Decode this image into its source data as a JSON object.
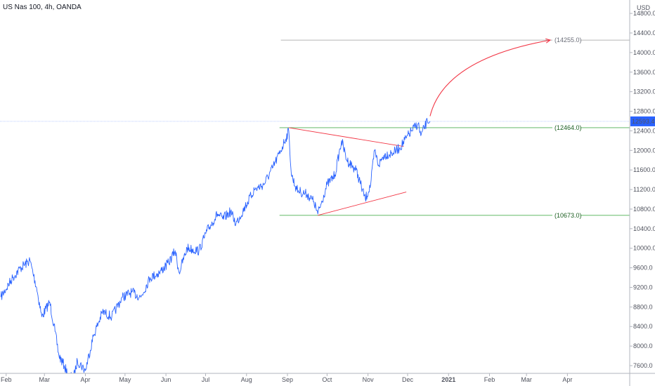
{
  "header": {
    "title": "US Nas 100, 4h, OANDA"
  },
  "colors": {
    "price_line": "#2962ff",
    "trendline": "#f23645",
    "arrow": "#f23645",
    "support_line": "#4caf50",
    "target_line": "#9e9e9e",
    "current_price_line": "#2962ff",
    "current_price_bg": "#2962ff",
    "axis_border": "#b2b5be",
    "axis_text": "#50535e",
    "level_label_support": "#1b5e20",
    "level_label_target": "#6a6d78"
  },
  "chart_data": {
    "type": "line",
    "title": "US Nas 100, 4h, OANDA",
    "currency": "USD",
    "x_tick_labels": [
      "Feb",
      "Mar",
      "Apr",
      "May",
      "Jun",
      "Jul",
      "Aug",
      "Sep",
      "Oct",
      "Nov",
      "Dec",
      "2021",
      "Feb",
      "Mar",
      "Apr"
    ],
    "y_ticks": [
      7600,
      8000,
      8400,
      8800,
      9200,
      9600,
      10000,
      10400,
      10800,
      11200,
      11600,
      12000,
      12400,
      12800,
      13200,
      13600,
      14000,
      14400,
      14800
    ],
    "y_tick_labels": [
      "7600.0",
      "8000.0",
      "8400.0",
      "8800.0",
      "9200.0",
      "9600.0",
      "10000.0",
      "10400.0",
      "10800.0",
      "11200.0",
      "11600.0",
      "12000.0",
      "12400.0",
      "12800.0",
      "13200.0",
      "13600.0",
      "14000.0",
      "14400.0",
      "14800.0"
    ],
    "ylim": [
      7400,
      15000
    ],
    "series": [
      {
        "x": [
          "2020-01-28",
          "2020-02-06",
          "2020-02-12",
          "2020-02-19",
          "2020-02-24",
          "2020-02-28",
          "2020-03-05",
          "2020-03-09",
          "2020-03-12",
          "2020-03-16",
          "2020-03-19",
          "2020-03-23",
          "2020-03-26",
          "2020-04-01",
          "2020-04-07",
          "2020-04-14",
          "2020-04-21",
          "2020-04-29",
          "2020-05-06",
          "2020-05-13",
          "2020-05-20",
          "2020-05-27",
          "2020-06-03",
          "2020-06-08",
          "2020-06-11",
          "2020-06-17",
          "2020-06-26",
          "2020-07-02",
          "2020-07-10",
          "2020-07-14",
          "2020-07-20",
          "2020-07-24",
          "2020-07-31",
          "2020-08-07",
          "2020-08-14",
          "2020-08-21",
          "2020-08-27",
          "2020-09-02",
          "2020-09-04",
          "2020-09-08",
          "2020-09-11",
          "2020-09-16",
          "2020-09-21",
          "2020-09-24",
          "2020-10-01",
          "2020-10-07",
          "2020-10-12",
          "2020-10-16",
          "2020-10-23",
          "2020-10-30",
          "2020-11-03",
          "2020-11-06",
          "2020-11-09",
          "2020-11-13",
          "2020-11-20",
          "2020-11-25",
          "2020-11-30",
          "2020-12-04",
          "2020-12-09",
          "2020-12-11",
          "2020-12-16",
          "2020-12-18"
        ],
        "values": [
          9000,
          9400,
          9600,
          9750,
          9200,
          8600,
          8900,
          8300,
          7800,
          7600,
          7400,
          7350,
          7700,
          7500,
          8200,
          8700,
          8600,
          9000,
          9100,
          9000,
          9400,
          9500,
          9700,
          9950,
          9500,
          10000,
          9950,
          10350,
          10700,
          10600,
          10750,
          10500,
          10850,
          11200,
          11300,
          11650,
          12000,
          12400,
          11500,
          11200,
          11150,
          11100,
          10950,
          10700,
          11300,
          11500,
          12200,
          11800,
          11600,
          11000,
          11300,
          12000,
          11700,
          11900,
          11950,
          12050,
          12250,
          12400,
          12550,
          12300,
          12600,
          12593
        ]
      }
    ],
    "horizontal_levels": [
      {
        "value": 14255,
        "label": "(14255.0)",
        "from": "2020-08-27",
        "role": "target"
      },
      {
        "value": 12464,
        "label": "(12464.0)",
        "from": "2020-08-26",
        "role": "support"
      },
      {
        "value": 10673,
        "label": "(10673.0)",
        "from": "2020-08-26",
        "role": "support"
      }
    ],
    "trendlines": [
      {
        "from": {
          "x": "2020-09-02",
          "y": 12464
        },
        "to": {
          "x": "2020-11-28",
          "y": 12080
        }
      },
      {
        "from": {
          "x": "2020-09-24",
          "y": 10673
        },
        "to": {
          "x": "2020-11-30",
          "y": 11150
        }
      }
    ],
    "projection_arrow": {
      "from": {
        "x": "2020-12-18",
        "y": 12700
      },
      "to": {
        "x": "2021-03-19",
        "y": 14255
      }
    },
    "current_price": {
      "value": 12593.4,
      "label": "12593.4"
    },
    "grid": false,
    "legend": "none"
  }
}
